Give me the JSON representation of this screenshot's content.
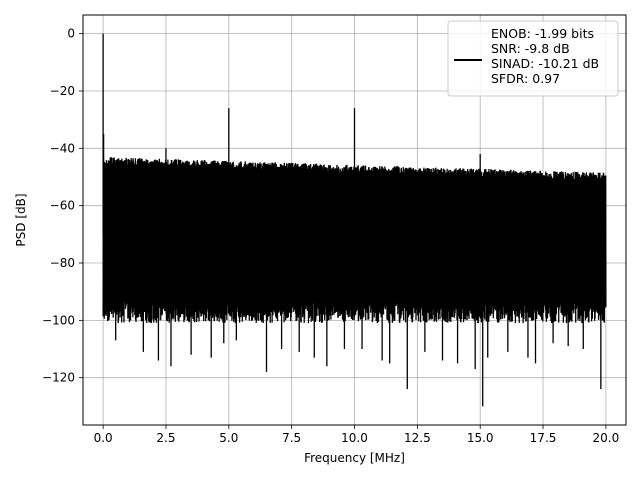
{
  "chart_data": {
    "type": "line",
    "title": "",
    "xlabel": "Frequency [MHz]",
    "ylabel": "PSD [dB]",
    "xlim": [
      -0.8,
      20.8
    ],
    "ylim": [
      -136.5,
      6.5
    ],
    "xticks": [
      0.0,
      2.5,
      5.0,
      7.5,
      10.0,
      12.5,
      15.0,
      17.5,
      20.0
    ],
    "xtick_labels": [
      "0.0",
      "2.5",
      "5.0",
      "7.5",
      "10.0",
      "12.5",
      "15.0",
      "17.5",
      "20.0"
    ],
    "yticks": [
      0,
      -20,
      -40,
      -60,
      -80,
      -100,
      -120
    ],
    "ytick_labels": [
      "0",
      "−20",
      "−40",
      "−60",
      "−80",
      "−100",
      "−120"
    ],
    "grid": true,
    "legend_position": "top-right",
    "legend_entries": [
      "ENOB: -1.99 bits",
      "SNR: -9.8 dB",
      "SINAD: -10.21 dB",
      "SFDR: 0.97"
    ],
    "series": [
      {
        "color": "#000000",
        "noise_floor": {
          "x_range": [
            0.0,
            20.0
          ],
          "upper_envelope_start": -43,
          "upper_envelope_end": -48.5,
          "lower_typical": -97
        },
        "spikes": [
          {
            "x": 0.0,
            "y": 0
          },
          {
            "x": 0.02,
            "y": -35
          },
          {
            "x": 2.5,
            "y": -40
          },
          {
            "x": 5.0,
            "y": -26
          },
          {
            "x": 10.0,
            "y": -26
          },
          {
            "x": 15.0,
            "y": -42
          }
        ],
        "dips": [
          {
            "x": 0.5,
            "y": -107
          },
          {
            "x": 1.6,
            "y": -111
          },
          {
            "x": 2.2,
            "y": -114
          },
          {
            "x": 2.7,
            "y": -116
          },
          {
            "x": 3.5,
            "y": -112
          },
          {
            "x": 4.3,
            "y": -113
          },
          {
            "x": 4.8,
            "y": -108
          },
          {
            "x": 5.3,
            "y": -107
          },
          {
            "x": 6.5,
            "y": -118
          },
          {
            "x": 7.1,
            "y": -110
          },
          {
            "x": 7.8,
            "y": -111
          },
          {
            "x": 8.4,
            "y": -113
          },
          {
            "x": 8.9,
            "y": -116
          },
          {
            "x": 9.6,
            "y": -110
          },
          {
            "x": 10.3,
            "y": -110
          },
          {
            "x": 11.1,
            "y": -114
          },
          {
            "x": 11.4,
            "y": -115
          },
          {
            "x": 12.1,
            "y": -124
          },
          {
            "x": 12.8,
            "y": -111
          },
          {
            "x": 13.5,
            "y": -114
          },
          {
            "x": 14.1,
            "y": -115
          },
          {
            "x": 14.8,
            "y": -117
          },
          {
            "x": 15.1,
            "y": -130
          },
          {
            "x": 15.3,
            "y": -113
          },
          {
            "x": 16.1,
            "y": -111
          },
          {
            "x": 16.9,
            "y": -113
          },
          {
            "x": 17.2,
            "y": -115
          },
          {
            "x": 17.9,
            "y": -108
          },
          {
            "x": 18.5,
            "y": -109
          },
          {
            "x": 19.1,
            "y": -110
          },
          {
            "x": 19.8,
            "y": -124
          }
        ]
      }
    ]
  }
}
